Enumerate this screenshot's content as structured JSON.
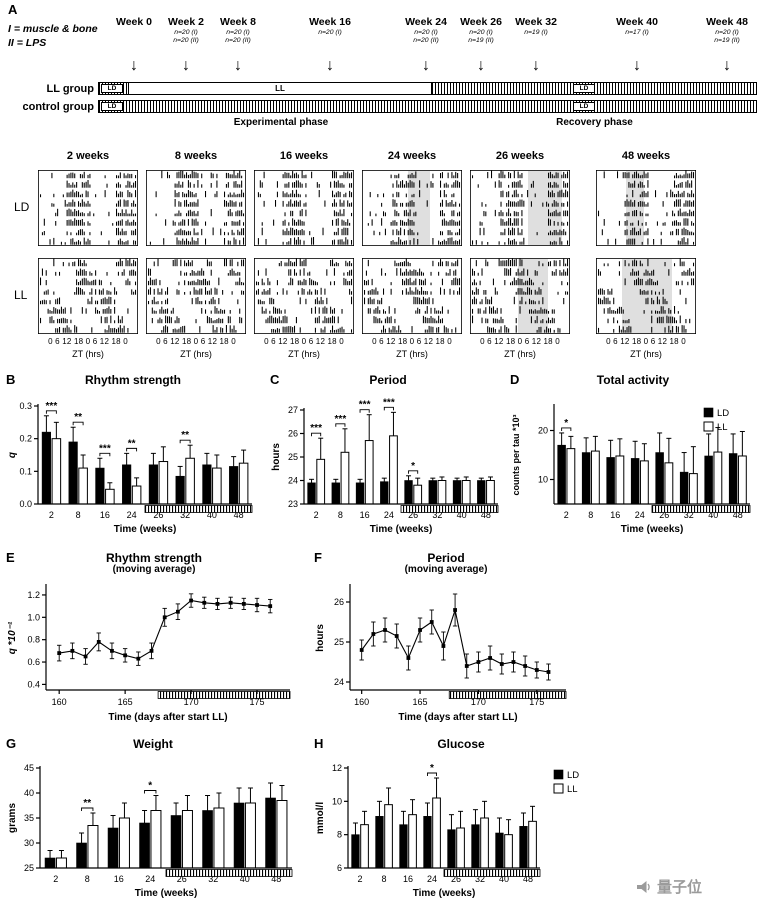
{
  "panel_a": {
    "label": "A",
    "notes": [
      "I = muscle & bone",
      "II = LPS"
    ],
    "timepoints": [
      {
        "week": "Week 0",
        "n": []
      },
      {
        "week": "Week 2",
        "n": [
          "n=20 (I)",
          "n=20 (II)"
        ]
      },
      {
        "week": "Week 8",
        "n": [
          "n=20 (I)",
          "n=20 (II)"
        ]
      },
      {
        "week": "Week 16",
        "n": [
          "n=20 (I)"
        ]
      },
      {
        "week": "Week 24",
        "n": [
          "n=20 (I)",
          "n=20 (II)"
        ]
      },
      {
        "week": "Week 26",
        "n": [
          "n=20 (I)",
          "n=19 (II)"
        ]
      },
      {
        "week": "Week 32",
        "n": [
          "n=19 (I)"
        ]
      },
      {
        "week": "Week 40",
        "n": [
          "n=17 (I)"
        ]
      },
      {
        "week": "Week 48",
        "n": [
          "n=20 (I)",
          "n=19 (II)"
        ]
      }
    ],
    "group_rows": [
      "LL group",
      "control group"
    ],
    "labels": {
      "ld": "LD",
      "ll": "LL"
    },
    "phases": [
      "Experimental phase",
      "Recovery phase"
    ]
  },
  "actograms": {
    "column_headers": [
      "2 weeks",
      "8 weeks",
      "16 weeks",
      "24 weeks",
      "26 weeks",
      "48 weeks"
    ],
    "row_labels": [
      "LD",
      "LL"
    ],
    "x_ticks": "0 6 12 18 0 6 12 18 0",
    "x_label": "ZT (hrs)"
  },
  "chart_data": [
    {
      "panel": "B",
      "type": "bar",
      "title": "Rhythm strength",
      "xlabel": "Time (weeks)",
      "ylabel": "q",
      "ylim": [
        0,
        0.3
      ],
      "yticks": [
        0,
        0.1,
        0.2,
        0.3
      ],
      "ydecimals": 1,
      "categories": [
        "2",
        "8",
        "16",
        "24",
        "26",
        "32",
        "40",
        "48"
      ],
      "series": [
        {
          "name": "LD",
          "color": "#000000",
          "values": [
            0.22,
            0.19,
            0.11,
            0.12,
            0.12,
            0.085,
            0.12,
            0.115
          ],
          "errors": [
            0.05,
            0.045,
            0.03,
            0.035,
            0.035,
            0.03,
            0.035,
            0.03
          ]
        },
        {
          "name": "LL",
          "color": "#ffffff",
          "values": [
            0.2,
            0.11,
            0.045,
            0.055,
            0.13,
            0.14,
            0.11,
            0.125
          ],
          "errors": [
            0.05,
            0.04,
            0.02,
            0.025,
            0.045,
            0.04,
            0.04,
            0.04
          ]
        }
      ],
      "significance": [
        {
          "index": 0,
          "label": "***"
        },
        {
          "index": 1,
          "label": "**"
        },
        {
          "index": 2,
          "label": "***"
        },
        {
          "index": 3,
          "label": "**"
        },
        {
          "index": 5,
          "label": "**"
        }
      ],
      "hatch_from_index": 4
    },
    {
      "panel": "C",
      "type": "bar",
      "title": "Period",
      "xlabel": "Time (weeks)",
      "ylabel": "hours",
      "ylim": [
        23,
        27
      ],
      "yticks": [
        23,
        24,
        25,
        26,
        27
      ],
      "ydecimals": 0,
      "categories": [
        "2",
        "8",
        "16",
        "24",
        "26",
        "32",
        "40",
        "48"
      ],
      "series": [
        {
          "name": "LD",
          "color": "#000000",
          "values": [
            23.9,
            23.9,
            23.9,
            23.95,
            24,
            24,
            24,
            24
          ],
          "errors": [
            0.15,
            0.15,
            0.15,
            0.15,
            0.2,
            0.1,
            0.1,
            0.1
          ]
        },
        {
          "name": "LL",
          "color": "#ffffff",
          "values": [
            24.9,
            25.2,
            25.7,
            25.9,
            23.8,
            24,
            24,
            24
          ],
          "errors": [
            0.9,
            1,
            1.1,
            1,
            0.3,
            0.15,
            0.15,
            0.15
          ]
        }
      ],
      "significance": [
        {
          "index": 0,
          "label": "***"
        },
        {
          "index": 1,
          "label": "***"
        },
        {
          "index": 2,
          "label": "***"
        },
        {
          "index": 3,
          "label": "***"
        },
        {
          "index": 4,
          "label": "*"
        }
      ],
      "hatch_from_index": 4
    },
    {
      "panel": "D",
      "type": "bar",
      "title": "Total activity",
      "xlabel": "Time (weeks)",
      "ylabel": "counts per tau *10³",
      "ylim": [
        5,
        25
      ],
      "yticks": [
        10,
        20
      ],
      "ydecimals": 0,
      "categories": [
        "2",
        "8",
        "16",
        "24",
        "26",
        "32",
        "40",
        "48"
      ],
      "series": [
        {
          "name": "LD",
          "color": "#000000",
          "values": [
            17,
            15.5,
            14.5,
            14.3,
            15.5,
            11.5,
            14.8,
            15.3
          ],
          "errors": [
            2.5,
            3,
            3.5,
            3.5,
            4,
            4,
            4.5,
            4
          ]
        },
        {
          "name": "LL",
          "color": "#ffffff",
          "values": [
            16.3,
            15.8,
            14.8,
            13.8,
            13.4,
            11.2,
            15.6,
            14.8
          ],
          "errors": [
            2.5,
            3,
            3.5,
            3.5,
            5,
            5.5,
            5,
            5
          ]
        }
      ],
      "significance": [
        {
          "index": 0,
          "label": "*"
        }
      ],
      "hatch_from_index": 4,
      "legend": {
        "entries": [
          "LD",
          "LL"
        ],
        "position": "top-right"
      }
    },
    {
      "panel": "E",
      "type": "line",
      "title": "Rhythm strength",
      "subtitle": "(moving average)",
      "xlabel": "Time (days after start LL)",
      "ylabel": "q *10⁻¹",
      "xlim": [
        159,
        177.5
      ],
      "xticks": [
        160,
        165,
        170,
        175
      ],
      "ylim": [
        0.35,
        1.28
      ],
      "yticks": [
        0.4,
        0.6,
        0.8,
        1.0,
        1.2
      ],
      "ydecimals": 1,
      "x": [
        160,
        161,
        162,
        163,
        164,
        165,
        166,
        167,
        168,
        169,
        170,
        171,
        172,
        173,
        174,
        175,
        176
      ],
      "values": [
        0.68,
        0.7,
        0.65,
        0.78,
        0.7,
        0.66,
        0.63,
        0.7,
        1,
        1.05,
        1.15,
        1.13,
        1.12,
        1.13,
        1.12,
        1.11,
        1.1
      ],
      "errors": [
        0.07,
        0.07,
        0.07,
        0.08,
        0.07,
        0.06,
        0.06,
        0.07,
        0.08,
        0.07,
        0.06,
        0.05,
        0.05,
        0.05,
        0.05,
        0.06,
        0.06
      ],
      "hatch_from_x": 167.5
    },
    {
      "panel": "F",
      "type": "line",
      "title": "Period",
      "subtitle": "(moving average)",
      "xlabel": "Time (days after start LL)",
      "ylabel": "hours",
      "xlim": [
        159,
        177.5
      ],
      "xticks": [
        160,
        165,
        170,
        175
      ],
      "ylim": [
        23.8,
        26.4
      ],
      "yticks": [
        24,
        25,
        26
      ],
      "ydecimals": 0,
      "x": [
        160,
        161,
        162,
        163,
        164,
        165,
        166,
        167,
        168,
        169,
        170,
        171,
        172,
        173,
        174,
        175,
        176
      ],
      "values": [
        24.8,
        25.2,
        25.3,
        25.15,
        24.6,
        25.3,
        25.5,
        24.9,
        25.8,
        24.4,
        24.5,
        24.6,
        24.45,
        24.5,
        24.4,
        24.3,
        24.25
      ],
      "errors": [
        0.25,
        0.3,
        0.3,
        0.3,
        0.3,
        0.3,
        0.3,
        0.35,
        0.4,
        0.3,
        0.25,
        0.3,
        0.25,
        0.25,
        0.25,
        0.2,
        0.2
      ],
      "hatch_from_x": 167.5
    },
    {
      "panel": "G",
      "type": "bar",
      "title": "Weight",
      "xlabel": "Time (weeks)",
      "ylabel": "grams",
      "ylim": [
        25,
        45
      ],
      "yticks": [
        25,
        30,
        35,
        40,
        45
      ],
      "ydecimals": 0,
      "categories": [
        "2",
        "8",
        "16",
        "24",
        "26",
        "32",
        "40",
        "48"
      ],
      "series": [
        {
          "name": "LD",
          "color": "#000000",
          "values": [
            27,
            30,
            33,
            34,
            35.5,
            36.5,
            38,
            39
          ],
          "errors": [
            1.5,
            2,
            2.5,
            2.5,
            2.5,
            3,
            3,
            3
          ]
        },
        {
          "name": "LL",
          "color": "#ffffff",
          "values": [
            27,
            33.5,
            35,
            36.5,
            36.5,
            37,
            38,
            38.5
          ],
          "errors": [
            1.5,
            2.5,
            3,
            3,
            3,
            3,
            3,
            3
          ]
        }
      ],
      "significance": [
        {
          "index": 1,
          "label": "**"
        },
        {
          "index": 3,
          "label": "*"
        }
      ],
      "hatch_from_index": 4
    },
    {
      "panel": "H",
      "type": "bar",
      "title": "Glucose",
      "xlabel": "Time (weeks)",
      "ylabel": "mmol/l",
      "ylim": [
        6,
        12
      ],
      "yticks": [
        6,
        8,
        10,
        12
      ],
      "ydecimals": 0,
      "categories": [
        "2",
        "8",
        "16",
        "24",
        "26",
        "32",
        "40",
        "48"
      ],
      "series": [
        {
          "name": "LD",
          "color": "#000000",
          "values": [
            8,
            9.1,
            8.6,
            9.1,
            8.3,
            8.6,
            8.1,
            8.5
          ],
          "errors": [
            0.7,
            0.9,
            0.8,
            0.8,
            0.9,
            0.9,
            0.9,
            0.8
          ]
        },
        {
          "name": "LL",
          "color": "#ffffff",
          "values": [
            8.6,
            9.8,
            9.2,
            10.2,
            8.4,
            9,
            8,
            8.8
          ],
          "errors": [
            0.8,
            1,
            0.9,
            1.2,
            1,
            1,
            0.9,
            0.9
          ]
        }
      ],
      "significance": [
        {
          "index": 3,
          "label": "*"
        }
      ],
      "hatch_from_index": 4,
      "legend": {
        "entries": [
          "LD",
          "LL"
        ],
        "position": "right"
      }
    }
  ],
  "watermark": {
    "text": "量子位"
  }
}
